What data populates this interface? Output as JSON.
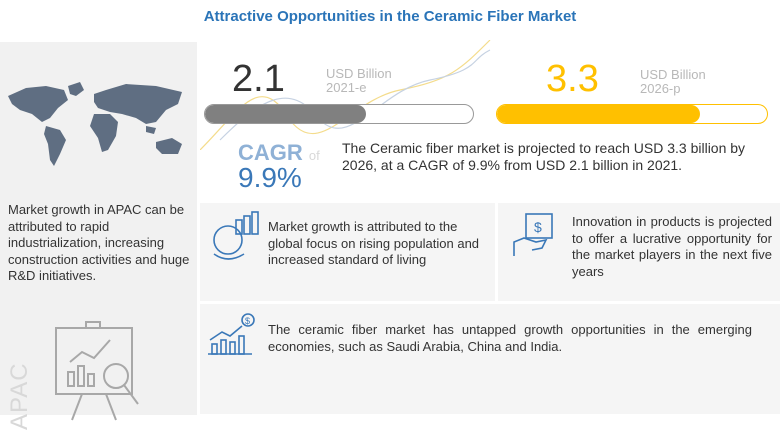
{
  "title": "Attractive Opportunities in the Ceramic Fiber Market",
  "left_panel": {
    "text": "Market growth in APAC can be attributed to rapid industrialization, increasing construction activities and huge R&D initiatives.",
    "region_label": "APAC"
  },
  "market_2021": {
    "value": "2.1",
    "unit": "USD Billion",
    "year": "2021-e",
    "bar_fill_percent": 60,
    "color": "#808080"
  },
  "market_2026": {
    "value": "3.3",
    "unit": "USD Billion",
    "year": "2026-p",
    "bar_fill_percent": 75,
    "color": "#ffc000"
  },
  "cagr": {
    "label": "CAGR",
    "of": "of",
    "value": "9.9%"
  },
  "projection_text": "The Ceramic fiber market is projected to reach USD 3.3 billion by 2026, at a CAGR of 9.9% from USD 2.1 billion in 2021.",
  "insights": [
    {
      "icon": "population-growth-icon",
      "text": "Market growth is attributed to the global focus on rising population and increased standard of living"
    },
    {
      "icon": "innovation-money-icon",
      "text": "Innovation in products is projected to offer a lucrative opportunity for the market players in the next five years"
    },
    {
      "icon": "growth-chart-dollar-icon",
      "text": "The ceramic fiber market has untapped growth opportunities in the emerging economies, such as Saudi Arabia, China and India."
    }
  ]
}
